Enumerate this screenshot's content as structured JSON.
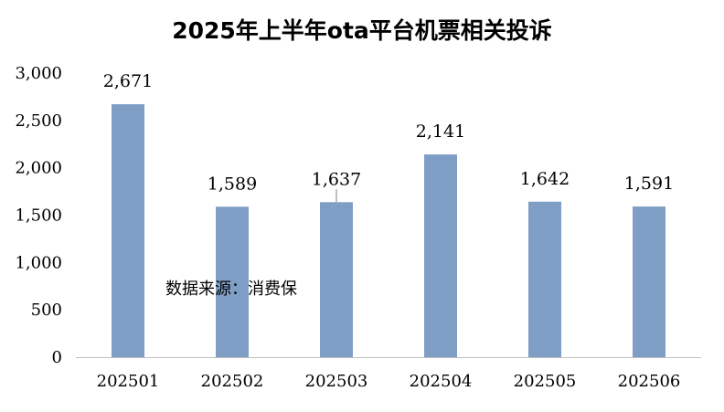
{
  "chart_data": {
    "type": "bar",
    "title": "2025年上半年ota平台机票相关投诉",
    "categories": [
      "202501",
      "202502",
      "202503",
      "202504",
      "202505",
      "202506"
    ],
    "values": [
      2671,
      1589,
      1637,
      2141,
      1642,
      1591
    ],
    "data_labels": [
      "2,671",
      "1,589",
      "1,637",
      "2,141",
      "1,642",
      "1,591"
    ],
    "ylim": [
      0,
      3000
    ],
    "yticks": [
      0,
      500,
      1000,
      1500,
      2000,
      2500,
      3000
    ],
    "ytick_labels": [
      "0",
      "500",
      "1,000",
      "1,500",
      "2,000",
      "2,500",
      "3,000"
    ],
    "grid": false,
    "bar_color": "#7f9ec6",
    "annotation": "数据来源：消费保"
  }
}
